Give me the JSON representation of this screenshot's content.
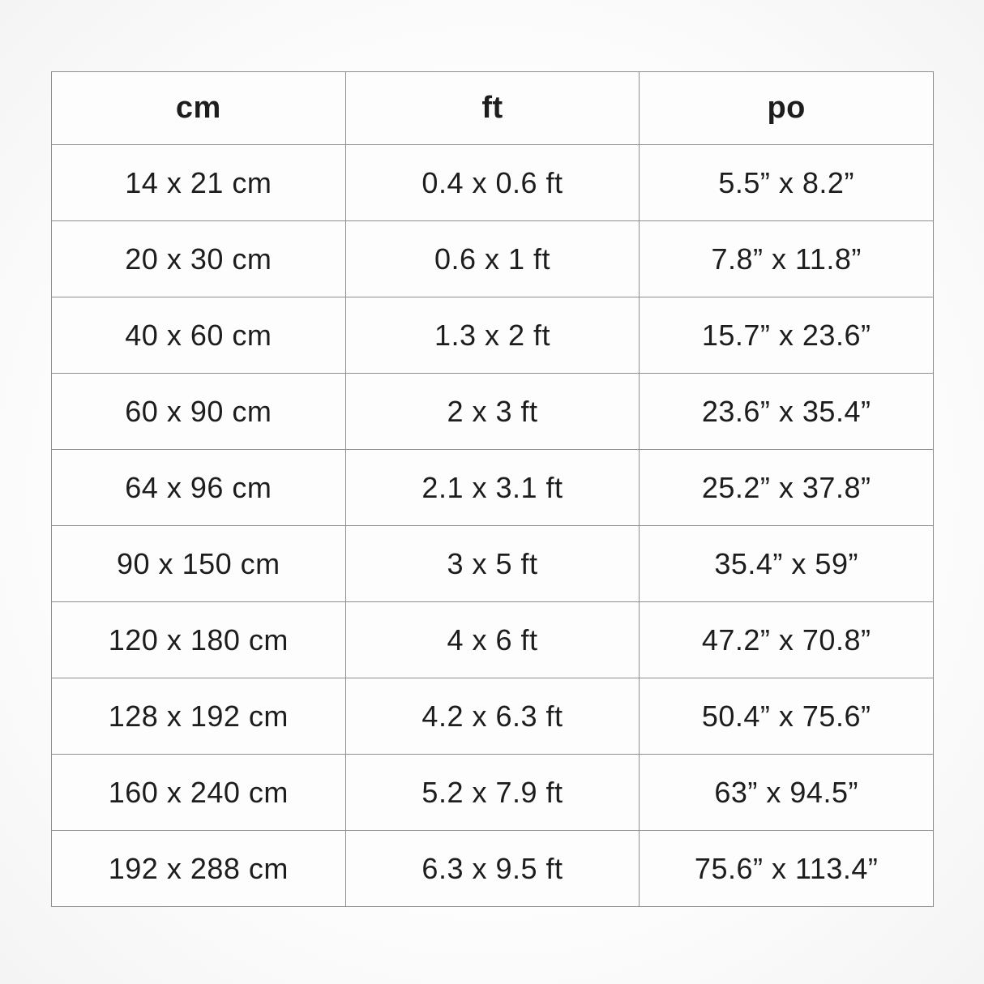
{
  "chart_data": {
    "type": "table",
    "columns": [
      "cm",
      "ft",
      "po"
    ],
    "rows": [
      [
        "14 x 21 cm",
        "0.4 x 0.6 ft",
        "5.5” x 8.2”"
      ],
      [
        "20 x 30 cm",
        "0.6 x 1 ft",
        "7.8” x 11.8”"
      ],
      [
        "40 x 60 cm",
        "1.3 x 2 ft",
        "15.7” x 23.6”"
      ],
      [
        "60 x 90 cm",
        "2 x 3 ft",
        "23.6” x 35.4”"
      ],
      [
        "64 x 96 cm",
        "2.1 x 3.1 ft",
        "25.2” x 37.8”"
      ],
      [
        "90 x 150 cm",
        "3 x 5 ft",
        "35.4” x 59”"
      ],
      [
        "120 x 180 cm",
        "4 x 6 ft",
        "47.2” x 70.8”"
      ],
      [
        "128 x 192 cm",
        "4.2 x 6.3 ft",
        "50.4” x 75.6”"
      ],
      [
        "160 x 240 cm",
        "5.2 x 7.9 ft",
        "63” x 94.5”"
      ],
      [
        "192 x 288 cm",
        "6.3 x 9.5 ft",
        "75.6” x 113.4”"
      ]
    ]
  },
  "colors": {
    "border": "#8e8e8e",
    "text": "#1d1d1d",
    "cell_background": "#fdfdfd",
    "page_background": "#fbfbfb"
  }
}
